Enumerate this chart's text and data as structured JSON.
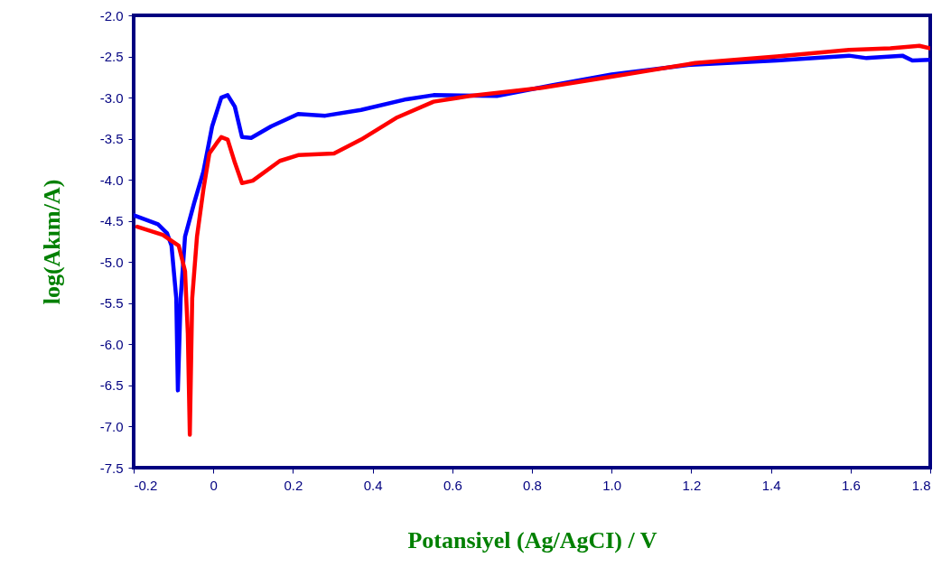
{
  "chart_data": {
    "type": "line",
    "xlabel": "Potansiyel (Ag/AgCI) / V",
    "ylabel": "log(Akım/A)",
    "xlim": [
      -0.2,
      1.8
    ],
    "ylim": [
      -7.5,
      -2.0
    ],
    "xticks": [
      -0.2,
      0,
      0.2,
      0.4,
      0.6,
      0.8,
      {
        "value": 1,
        "label": "1.0"
      },
      1.2,
      1.4,
      1.6,
      1.8
    ],
    "yticks": [
      -7.5,
      {
        "value": -7,
        "label": "-7.0"
      },
      -6.5,
      {
        "value": -6,
        "label": "-6.0"
      },
      -5.5,
      {
        "value": -5,
        "label": "-5.0"
      },
      -4.5,
      {
        "value": -4,
        "label": "-4.0"
      },
      -3.5,
      {
        "value": -3,
        "label": "-3.0"
      },
      -2.5,
      {
        "value": -2,
        "label": "-2.0"
      }
    ],
    "grid": false,
    "line_style": "solid",
    "marker": "none",
    "series": [
      {
        "color": "#0000ff",
        "x": [
          -0.2,
          -0.139,
          -0.116,
          -0.105,
          -0.093,
          -0.089,
          -0.082,
          -0.071,
          -0.048,
          -0.025,
          -0.003,
          0.02,
          0.036,
          0.054,
          0.072,
          0.095,
          0.145,
          0.213,
          0.281,
          0.371,
          0.485,
          0.553,
          0.712,
          0.85,
          1.0,
          1.2,
          1.415,
          1.596,
          1.64,
          1.73,
          1.755,
          1.8
        ],
        "values": [
          -4.43,
          -4.54,
          -4.65,
          -4.8,
          -5.44,
          -6.56,
          -5.44,
          -4.69,
          -4.28,
          -3.9,
          -3.35,
          -3.0,
          -2.97,
          -3.11,
          -3.48,
          -3.49,
          -3.35,
          -3.2,
          -3.22,
          -3.15,
          -3.02,
          -2.97,
          -2.98,
          -2.85,
          -2.72,
          -2.6,
          -2.55,
          -2.49,
          -2.52,
          -2.49,
          -2.55,
          -2.54
        ]
      },
      {
        "color": "#ff0000",
        "x": [
          -0.191,
          -0.127,
          -0.087,
          -0.071,
          -0.064,
          -0.059,
          -0.053,
          -0.041,
          -0.025,
          -0.01,
          0.009,
          0.02,
          0.036,
          0.054,
          0.072,
          0.099,
          0.167,
          0.213,
          0.303,
          0.371,
          0.462,
          0.553,
          0.644,
          0.825,
          1.006,
          1.21,
          1.415,
          1.596,
          1.7,
          1.773,
          1.8
        ],
        "values": [
          -4.57,
          -4.67,
          -4.8,
          -5.11,
          -5.87,
          -7.1,
          -5.44,
          -4.69,
          -4.12,
          -3.68,
          -3.55,
          -3.48,
          -3.51,
          -3.79,
          -4.04,
          -4.01,
          -3.77,
          -3.7,
          -3.68,
          -3.51,
          -3.24,
          -3.05,
          -2.98,
          -2.88,
          -2.74,
          -2.58,
          -2.5,
          -2.42,
          -2.4,
          -2.37,
          -2.4
        ]
      }
    ]
  }
}
